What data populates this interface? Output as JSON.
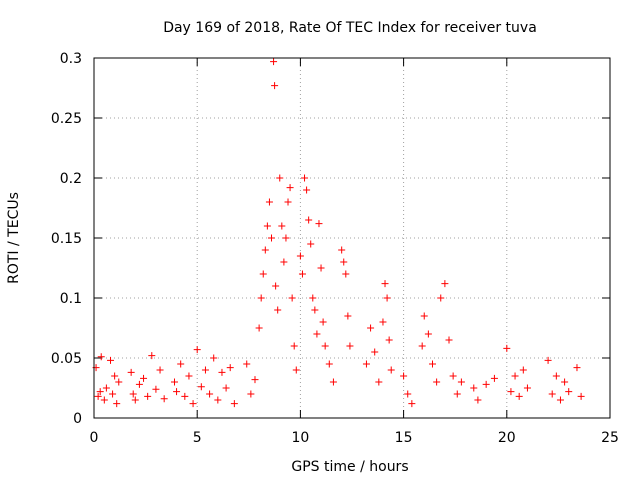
{
  "chart_data": {
    "type": "scatter",
    "title": "Day 169 of 2018, Rate Of TEC Index for receiver tuva",
    "xlabel": "GPS time / hours",
    "ylabel": "ROTI / TECUs",
    "xlim": [
      0,
      25
    ],
    "ylim": [
      0,
      0.3
    ],
    "xticks": [
      0,
      5,
      10,
      15,
      20,
      25
    ],
    "xtick_labels": [
      "0",
      "5",
      "10",
      "15",
      "20",
      "25"
    ],
    "yticks": [
      0,
      0.05,
      0.1,
      0.15,
      0.2,
      0.25,
      0.3
    ],
    "ytick_labels": [
      "0",
      "0.05",
      "0.1",
      "0.15",
      "0.2",
      "0.25",
      "0.3"
    ],
    "grid": true,
    "marker": "+",
    "color": "#ff0000",
    "series": [
      {
        "points": [
          [
            0.1,
            0.042
          ],
          [
            0.2,
            0.018
          ],
          [
            0.3,
            0.022
          ],
          [
            0.35,
            0.051
          ],
          [
            0.5,
            0.015
          ],
          [
            0.6,
            0.025
          ],
          [
            0.8,
            0.048
          ],
          [
            0.9,
            0.02
          ],
          [
            1.0,
            0.035
          ],
          [
            1.1,
            0.012
          ],
          [
            1.2,
            0.03
          ],
          [
            1.8,
            0.038
          ],
          [
            1.9,
            0.02
          ],
          [
            2.0,
            0.015
          ],
          [
            2.2,
            0.028
          ],
          [
            2.4,
            0.033
          ],
          [
            2.6,
            0.018
          ],
          [
            2.8,
            0.052
          ],
          [
            3.0,
            0.024
          ],
          [
            3.2,
            0.04
          ],
          [
            3.4,
            0.016
          ],
          [
            3.9,
            0.03
          ],
          [
            4.0,
            0.022
          ],
          [
            4.2,
            0.045
          ],
          [
            4.4,
            0.018
          ],
          [
            4.6,
            0.035
          ],
          [
            4.8,
            0.012
          ],
          [
            5.0,
            0.057
          ],
          [
            5.2,
            0.026
          ],
          [
            5.4,
            0.04
          ],
          [
            5.6,
            0.02
          ],
          [
            5.8,
            0.05
          ],
          [
            6.0,
            0.015
          ],
          [
            6.2,
            0.038
          ],
          [
            6.4,
            0.025
          ],
          [
            6.6,
            0.042
          ],
          [
            6.8,
            0.012
          ],
          [
            7.4,
            0.045
          ],
          [
            7.6,
            0.02
          ],
          [
            7.8,
            0.032
          ],
          [
            8.0,
            0.075
          ],
          [
            8.1,
            0.1
          ],
          [
            8.2,
            0.12
          ],
          [
            8.3,
            0.14
          ],
          [
            8.4,
            0.16
          ],
          [
            8.5,
            0.18
          ],
          [
            8.6,
            0.15
          ],
          [
            8.7,
            0.297
          ],
          [
            8.75,
            0.277
          ],
          [
            8.8,
            0.11
          ],
          [
            8.9,
            0.09
          ],
          [
            9.0,
            0.2
          ],
          [
            9.1,
            0.16
          ],
          [
            9.2,
            0.13
          ],
          [
            9.3,
            0.15
          ],
          [
            9.4,
            0.18
          ],
          [
            9.5,
            0.192
          ],
          [
            9.6,
            0.1
          ],
          [
            9.7,
            0.06
          ],
          [
            9.8,
            0.04
          ],
          [
            10.0,
            0.135
          ],
          [
            10.1,
            0.12
          ],
          [
            10.2,
            0.2
          ],
          [
            10.3,
            0.19
          ],
          [
            10.4,
            0.165
          ],
          [
            10.5,
            0.145
          ],
          [
            10.6,
            0.1
          ],
          [
            10.7,
            0.09
          ],
          [
            10.8,
            0.07
          ],
          [
            10.9,
            0.162
          ],
          [
            11.0,
            0.125
          ],
          [
            11.1,
            0.08
          ],
          [
            11.2,
            0.06
          ],
          [
            11.4,
            0.045
          ],
          [
            11.6,
            0.03
          ],
          [
            12.0,
            0.14
          ],
          [
            12.1,
            0.13
          ],
          [
            12.2,
            0.12
          ],
          [
            12.3,
            0.085
          ],
          [
            12.4,
            0.06
          ],
          [
            13.2,
            0.045
          ],
          [
            13.4,
            0.075
          ],
          [
            13.6,
            0.055
          ],
          [
            13.8,
            0.03
          ],
          [
            14.0,
            0.08
          ],
          [
            14.1,
            0.112
          ],
          [
            14.2,
            0.1
          ],
          [
            14.3,
            0.065
          ],
          [
            14.4,
            0.04
          ],
          [
            15.0,
            0.035
          ],
          [
            15.2,
            0.02
          ],
          [
            15.4,
            0.012
          ],
          [
            15.9,
            0.06
          ],
          [
            16.0,
            0.085
          ],
          [
            16.2,
            0.07
          ],
          [
            16.4,
            0.045
          ],
          [
            16.6,
            0.03
          ],
          [
            16.8,
            0.1
          ],
          [
            17.0,
            0.112
          ],
          [
            17.2,
            0.065
          ],
          [
            17.4,
            0.035
          ],
          [
            17.6,
            0.02
          ],
          [
            17.8,
            0.03
          ],
          [
            18.4,
            0.025
          ],
          [
            18.6,
            0.015
          ],
          [
            19.0,
            0.028
          ],
          [
            19.4,
            0.033
          ],
          [
            20.0,
            0.058
          ],
          [
            20.2,
            0.022
          ],
          [
            20.4,
            0.035
          ],
          [
            20.6,
            0.018
          ],
          [
            20.8,
            0.04
          ],
          [
            21.0,
            0.025
          ],
          [
            22.0,
            0.048
          ],
          [
            22.2,
            0.02
          ],
          [
            22.4,
            0.035
          ],
          [
            22.6,
            0.015
          ],
          [
            22.8,
            0.03
          ],
          [
            23.0,
            0.022
          ],
          [
            23.4,
            0.042
          ],
          [
            23.6,
            0.018
          ]
        ]
      }
    ]
  }
}
